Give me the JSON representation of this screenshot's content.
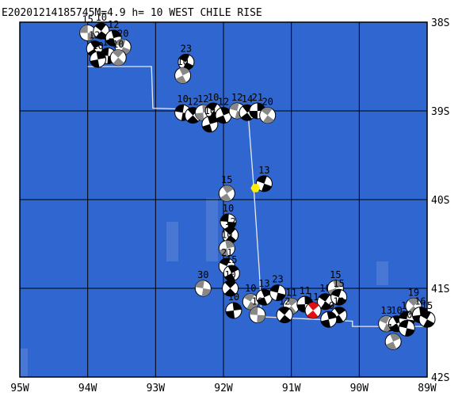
{
  "map": {
    "title": "E20201214185745M=4.9 h= 10 WEST CHILE RISE",
    "xlim": [
      -95,
      -89
    ],
    "ylim": [
      -42,
      -38
    ],
    "xticks": [
      {
        "value": -95,
        "label": "95W"
      },
      {
        "value": -94,
        "label": "94W"
      },
      {
        "value": -93,
        "label": "93W"
      },
      {
        "value": -92,
        "label": "92W"
      },
      {
        "value": -91,
        "label": "91W"
      },
      {
        "value": -90,
        "label": "90W"
      },
      {
        "value": -89,
        "label": "89W"
      }
    ],
    "yticks": [
      {
        "value": -38,
        "label": "38S"
      },
      {
        "value": -39,
        "label": "39S"
      },
      {
        "value": -40,
        "label": "40S"
      },
      {
        "value": -41,
        "label": "41S"
      },
      {
        "value": -42,
        "label": "42S"
      }
    ],
    "ocean_color": "#2f66cf",
    "boundary": [
      [
        -94.0,
        -38.5
      ],
      [
        -93.06,
        -38.5
      ],
      [
        -93.04,
        -38.97
      ],
      [
        -91.64,
        -39.0
      ],
      [
        -91.56,
        -39.8
      ],
      [
        -91.47,
        -40.83
      ],
      [
        -91.44,
        -41.32
      ],
      [
        -90.1,
        -41.37
      ],
      [
        -90.1,
        -41.43
      ],
      [
        -89.0,
        -41.43
      ]
    ],
    "epicenter": {
      "lon": -91.53,
      "lat": -39.87,
      "color": "#ffee00"
    },
    "events": [
      {
        "lon": -94.0,
        "lat": -38.12,
        "depth": 15
      },
      {
        "lon": -93.8,
        "lat": -38.1,
        "depth": 10
      },
      {
        "lon": -93.62,
        "lat": -38.18,
        "depth": 12
      },
      {
        "lon": -93.48,
        "lat": -38.28,
        "depth": 20
      },
      {
        "lon": -93.9,
        "lat": -38.3,
        "depth": 12
      },
      {
        "lon": -93.7,
        "lat": -38.38,
        "depth": 15
      },
      {
        "lon": -93.55,
        "lat": -38.4,
        "depth": 10
      },
      {
        "lon": -93.85,
        "lat": -38.42,
        "depth": 10
      },
      {
        "lon": -92.55,
        "lat": -38.45,
        "depth": 23
      },
      {
        "lon": -92.6,
        "lat": -38.6,
        "depth": 10
      },
      {
        "lon": -92.6,
        "lat": -39.02,
        "depth": 10
      },
      {
        "lon": -92.45,
        "lat": -39.05,
        "depth": 12
      },
      {
        "lon": -92.3,
        "lat": -39.02,
        "depth": 12
      },
      {
        "lon": -92.15,
        "lat": -39.0,
        "depth": 10
      },
      {
        "lon": -92.0,
        "lat": -39.05,
        "depth": 12
      },
      {
        "lon": -91.8,
        "lat": -39.0,
        "depth": 12
      },
      {
        "lon": -91.65,
        "lat": -39.02,
        "depth": 14
      },
      {
        "lon": -91.5,
        "lat": -39.0,
        "depth": 21
      },
      {
        "lon": -91.35,
        "lat": -39.05,
        "depth": 20
      },
      {
        "lon": -92.2,
        "lat": -39.15,
        "depth": 10
      },
      {
        "lon": -91.4,
        "lat": -39.82,
        "depth": 13
      },
      {
        "lon": -91.95,
        "lat": -39.93,
        "depth": 15
      },
      {
        "lon": -91.93,
        "lat": -40.25,
        "depth": 10
      },
      {
        "lon": -91.9,
        "lat": -40.4,
        "depth": 12
      },
      {
        "lon": -91.95,
        "lat": -40.55,
        "depth": 10
      },
      {
        "lon": -91.95,
        "lat": -40.75,
        "depth": 21
      },
      {
        "lon": -91.88,
        "lat": -40.83,
        "depth": 15
      },
      {
        "lon": -92.3,
        "lat": -41.0,
        "depth": 30
      },
      {
        "lon": -91.9,
        "lat": -41.0,
        "depth": 10
      },
      {
        "lon": -91.85,
        "lat": -41.25,
        "depth": 10
      },
      {
        "lon": -91.6,
        "lat": -41.15,
        "depth": 10
      },
      {
        "lon": -91.4,
        "lat": -41.1,
        "depth": 13
      },
      {
        "lon": -91.2,
        "lat": -41.05,
        "depth": 23
      },
      {
        "lon": -91.0,
        "lat": -41.2,
        "depth": 11
      },
      {
        "lon": -90.8,
        "lat": -41.18,
        "depth": 11
      },
      {
        "lon": -90.5,
        "lat": -41.15,
        "depth": 10
      },
      {
        "lon": -90.35,
        "lat": -41.0,
        "depth": 15
      },
      {
        "lon": -90.3,
        "lat": -41.1,
        "depth": 15
      },
      {
        "lon": -90.3,
        "lat": -41.3,
        "depth": 10
      },
      {
        "lon": -91.5,
        "lat": -41.3,
        "depth": 10
      },
      {
        "lon": -91.1,
        "lat": -41.3,
        "depth": 12
      },
      {
        "lon": -90.45,
        "lat": -41.35,
        "depth": 10
      },
      {
        "lon": -89.6,
        "lat": -41.4,
        "depth": 13
      },
      {
        "lon": -89.45,
        "lat": -41.4,
        "depth": 10
      },
      {
        "lon": -89.3,
        "lat": -41.35,
        "depth": 12
      },
      {
        "lon": -89.2,
        "lat": -41.2,
        "depth": 19
      },
      {
        "lon": -89.1,
        "lat": -41.3,
        "depth": 16
      },
      {
        "lon": -89.0,
        "lat": -41.35,
        "depth": 15
      },
      {
        "lon": -89.5,
        "lat": -41.6,
        "depth": 10
      },
      {
        "lon": -89.3,
        "lat": -41.45,
        "depth": 10
      },
      {
        "lon": -90.68,
        "lat": -41.25,
        "depth": 11,
        "color": "#e01010"
      }
    ]
  }
}
